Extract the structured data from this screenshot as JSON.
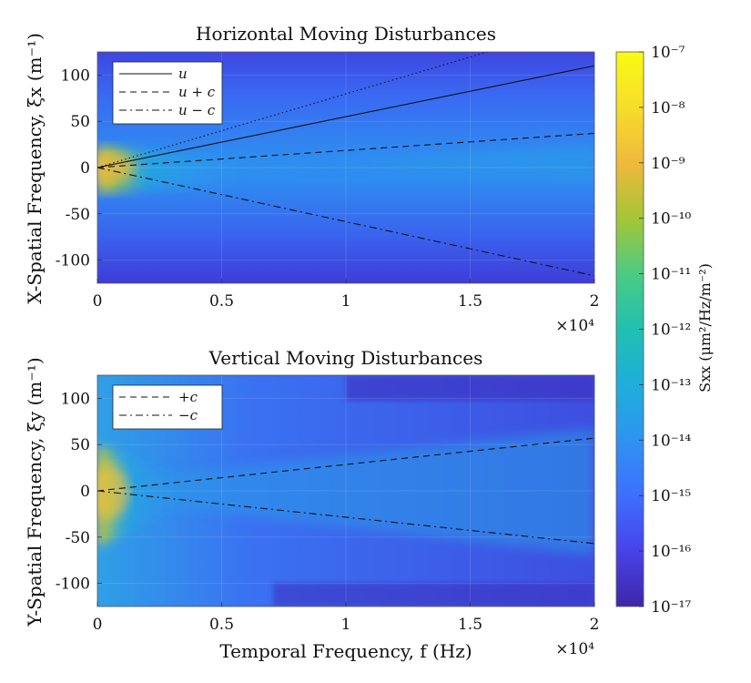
{
  "chart_data": [
    {
      "type": "heatmap",
      "title": "Horizontal Moving Disturbances",
      "xlabel": "",
      "ylabel": "X-Spatial Frequency, ξx (m⁻¹)",
      "xlim": [
        0,
        20000
      ],
      "ylim": [
        -125,
        125
      ],
      "x_ticks": [
        0,
        5000,
        10000,
        15000,
        20000
      ],
      "x_tick_labels": [
        "0",
        "0.5",
        "1",
        "1.5",
        "2"
      ],
      "x_multiplier": "×10⁴",
      "y_ticks": [
        100,
        50,
        0,
        -50,
        -100
      ],
      "y_tick_labels": [
        "100",
        "50",
        "0",
        "-50",
        "-100"
      ],
      "legend_position": "top-left",
      "series": [
        {
          "name": "u",
          "style": "solid",
          "x": [
            0,
            20000
          ],
          "y": [
            0,
            110
          ]
        },
        {
          "name": "u + c",
          "style": "dashed",
          "x": [
            0,
            20000
          ],
          "y": [
            0,
            37
          ]
        },
        {
          "name": "u − c",
          "style": "dashdot",
          "x": [
            0,
            20000
          ],
          "y": [
            0,
            -117
          ]
        },
        {
          "style": "dotted",
          "x": [
            0,
            15700
          ],
          "y": [
            0,
            125
          ]
        }
      ]
    },
    {
      "type": "heatmap",
      "title": "Vertical Moving Disturbances",
      "xlabel": "Temporal Frequency, f (Hz)",
      "ylabel": "Y-Spatial Frequency, ξy (m⁻¹)",
      "xlim": [
        0,
        20000
      ],
      "ylim": [
        -125,
        125
      ],
      "x_ticks": [
        0,
        5000,
        10000,
        15000,
        20000
      ],
      "x_tick_labels": [
        "0",
        "0.5",
        "1",
        "1.5",
        "2"
      ],
      "x_multiplier": "×10⁴",
      "y_ticks": [
        100,
        50,
        0,
        -50,
        -100
      ],
      "y_tick_labels": [
        "100",
        "50",
        "0",
        "-50",
        "-100"
      ],
      "legend_position": "top-left",
      "series": [
        {
          "name": "+c",
          "style": "dashed",
          "x": [
            0,
            20000
          ],
          "y": [
            0,
            57
          ]
        },
        {
          "name": "−c",
          "style": "dashdot",
          "x": [
            0,
            20000
          ],
          "y": [
            0,
            -57
          ]
        }
      ]
    }
  ],
  "colorbar": {
    "label": "Sxx (μm²/Hz/m⁻²)",
    "scale": "log",
    "range_exponents": [
      -17,
      -7
    ],
    "tick_labels": [
      "10⁻⁷",
      "10⁻⁸",
      "10⁻⁹",
      "10⁻¹⁰",
      "10⁻¹¹",
      "10⁻¹²",
      "10⁻¹³",
      "10⁻¹⁴",
      "10⁻¹⁵",
      "10⁻¹⁶",
      "10⁻¹⁷"
    ],
    "colormap": "parula",
    "colors": [
      "#3e26a8",
      "#4743e9",
      "#3e6ffe",
      "#2f93f1",
      "#1eaedb",
      "#20c0b0",
      "#4ccb83",
      "#a4c636",
      "#f0b93d",
      "#f7dd2a",
      "#f9fb15"
    ]
  }
}
